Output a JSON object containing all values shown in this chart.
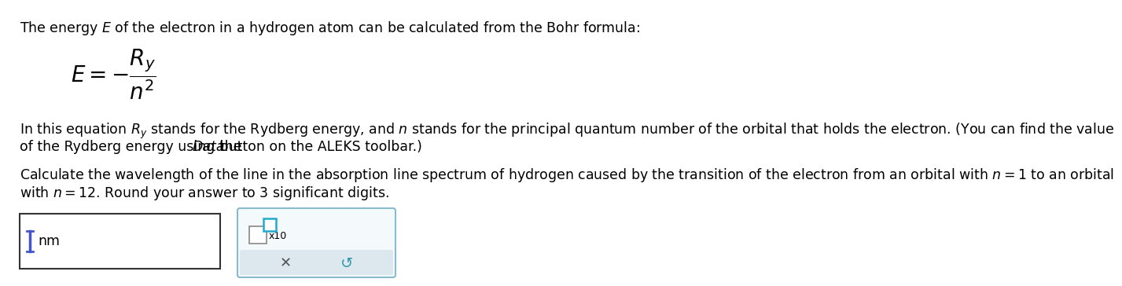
{
  "bg_color": "#ffffff",
  "text_color": "#000000",
  "font_size_main": 12.5,
  "font_size_formula": 20,
  "line1": "The energy $E$ of the electron in a hydrogen atom can be calculated from the Bohr formula:",
  "formula": "$E = -\\dfrac{R_y}{n^2}$",
  "line3": "In this equation $R_y$ stands for the Rydberg energy, and $n$ stands for the principal quantum number of the orbital that holds the electron. (You can find the value",
  "line4_pre": "of the Rydberg energy using the ",
  "line4_italic": "Data",
  "line4_post": " button on the ALEKS toolbar.)",
  "line5": "Calculate the wavelength of the line in the absorption line spectrum of hydrogen caused by the transition of the electron from an orbital with $n=1$ to an orbital",
  "line6": "with $n=12$. Round your answer to $3$ significant digits.",
  "box1_edge": "#333333",
  "box2_edge": "#88bbcc",
  "box2_bg": "#f4f9fc",
  "box2_gray": "#dce8ee",
  "cursor_color": "#4455cc",
  "cyan_color": "#22aacc",
  "gray_symbol": "#555555",
  "teal_symbol": "#3399aa"
}
